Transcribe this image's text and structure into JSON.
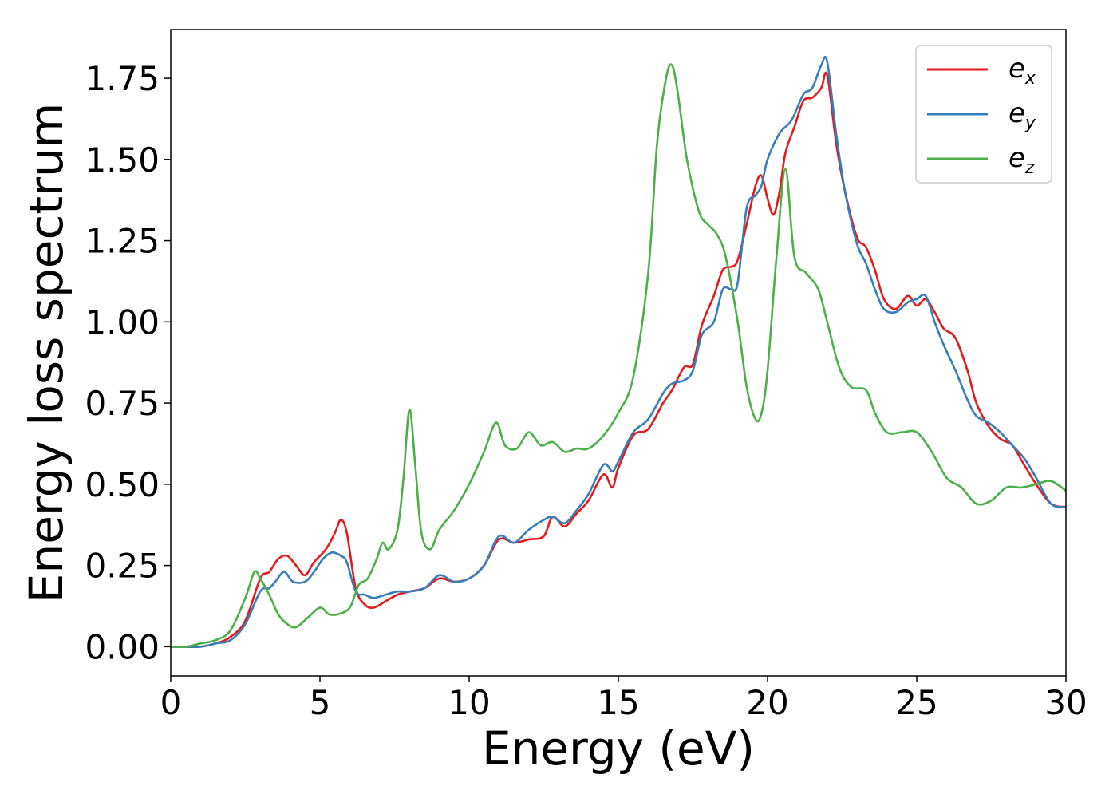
{
  "chart_data": {
    "type": "line",
    "title": "",
    "xlabel": "Energy (eV)",
    "ylabel": "Energy loss spectrum",
    "xlim": [
      0,
      30
    ],
    "ylim": [
      -0.09,
      1.9
    ],
    "xticks": [
      0,
      5,
      10,
      15,
      20,
      25,
      30
    ],
    "yticks": [
      0.0,
      0.25,
      0.5,
      0.75,
      1.0,
      1.25,
      1.5,
      1.75
    ],
    "ytick_labels": [
      "0.00",
      "0.25",
      "0.50",
      "0.75",
      "1.00",
      "1.25",
      "1.50",
      "1.75"
    ],
    "grid": false,
    "legend": "top-right",
    "series": [
      {
        "name": "e_x",
        "base": "e",
        "sub": "x",
        "color": "#e41a1c",
        "x": [
          0,
          0.5,
          1,
          1.5,
          2,
          2.5,
          3,
          3.3,
          3.6,
          3.9,
          4.2,
          4.5,
          4.8,
          5.2,
          5.5,
          5.7,
          5.9,
          6.2,
          6.5,
          6.8,
          7.2,
          7.6,
          8,
          8.5,
          9,
          9.5,
          10,
          10.5,
          11,
          11.5,
          12,
          12.5,
          12.8,
          13.2,
          13.6,
          14,
          14.5,
          14.8,
          15,
          15.5,
          16,
          16.5,
          16.8,
          17.2,
          17.5,
          17.8,
          18.2,
          18.5,
          18.8,
          19,
          19.3,
          19.6,
          19.8,
          20,
          20.2,
          20.4,
          20.6,
          20.9,
          21.2,
          21.5,
          21.8,
          22,
          22.3,
          22.6,
          23,
          23.3,
          23.6,
          23.9,
          24.3,
          24.7,
          25,
          25.3,
          25.6,
          25.9,
          26.3,
          26.7,
          27,
          27.4,
          27.8,
          28.2,
          28.6,
          29,
          29.5,
          30
        ],
        "y": [
          0.0,
          0.0,
          0.0,
          0.01,
          0.03,
          0.08,
          0.21,
          0.23,
          0.27,
          0.28,
          0.25,
          0.22,
          0.26,
          0.3,
          0.35,
          0.39,
          0.35,
          0.18,
          0.13,
          0.12,
          0.14,
          0.16,
          0.17,
          0.18,
          0.21,
          0.2,
          0.21,
          0.25,
          0.33,
          0.32,
          0.33,
          0.34,
          0.4,
          0.37,
          0.41,
          0.45,
          0.53,
          0.49,
          0.55,
          0.65,
          0.67,
          0.75,
          0.79,
          0.86,
          0.87,
          0.99,
          1.08,
          1.16,
          1.17,
          1.19,
          1.3,
          1.42,
          1.45,
          1.38,
          1.33,
          1.4,
          1.52,
          1.6,
          1.68,
          1.69,
          1.72,
          1.76,
          1.55,
          1.4,
          1.26,
          1.23,
          1.16,
          1.07,
          1.04,
          1.08,
          1.05,
          1.07,
          1.03,
          0.98,
          0.95,
          0.85,
          0.75,
          0.68,
          0.64,
          0.62,
          0.56,
          0.5,
          0.44,
          0.43
        ]
      },
      {
        "name": "e_y",
        "base": "e",
        "sub": "y",
        "color": "#377eb8",
        "x": [
          0,
          0.5,
          1,
          1.5,
          2,
          2.5,
          3,
          3.3,
          3.5,
          3.8,
          4.1,
          4.5,
          4.8,
          5.1,
          5.4,
          5.7,
          5.9,
          6.2,
          6.5,
          6.8,
          7.2,
          7.6,
          8,
          8.5,
          9,
          9.5,
          10,
          10.5,
          11,
          11.5,
          12,
          12.5,
          12.8,
          13.2,
          13.6,
          14,
          14.5,
          14.8,
          15,
          15.5,
          16,
          16.5,
          16.8,
          17.2,
          17.5,
          17.8,
          18.2,
          18.5,
          18.8,
          19,
          19.3,
          19.6,
          19.8,
          20,
          20.4,
          20.8,
          21.2,
          21.5,
          21.8,
          22,
          22.3,
          22.6,
          23,
          23.3,
          23.6,
          23.9,
          24.3,
          24.7,
          25,
          25.3,
          25.6,
          25.9,
          26.3,
          26.7,
          27,
          27.4,
          27.8,
          28.2,
          28.6,
          29,
          29.5,
          30
        ],
        "y": [
          0.0,
          0.0,
          0.0,
          0.01,
          0.02,
          0.07,
          0.17,
          0.18,
          0.2,
          0.23,
          0.2,
          0.2,
          0.23,
          0.27,
          0.29,
          0.28,
          0.26,
          0.17,
          0.16,
          0.15,
          0.16,
          0.17,
          0.17,
          0.18,
          0.22,
          0.2,
          0.21,
          0.25,
          0.34,
          0.32,
          0.36,
          0.39,
          0.4,
          0.38,
          0.42,
          0.47,
          0.56,
          0.54,
          0.57,
          0.66,
          0.7,
          0.78,
          0.81,
          0.82,
          0.85,
          0.96,
          1.0,
          1.1,
          1.1,
          1.12,
          1.35,
          1.39,
          1.42,
          1.5,
          1.58,
          1.62,
          1.7,
          1.72,
          1.79,
          1.8,
          1.58,
          1.4,
          1.24,
          1.18,
          1.1,
          1.04,
          1.03,
          1.06,
          1.07,
          1.08,
          1.0,
          0.93,
          0.85,
          0.76,
          0.71,
          0.69,
          0.66,
          0.62,
          0.58,
          0.52,
          0.44,
          0.43
        ]
      },
      {
        "name": "e_z",
        "base": "e",
        "sub": "z",
        "color": "#4daf4a",
        "x": [
          0,
          0.5,
          1,
          1.5,
          2,
          2.5,
          2.8,
          3,
          3.3,
          3.6,
          3.9,
          4.2,
          4.6,
          5,
          5.3,
          5.6,
          6,
          6.3,
          6.6,
          6.9,
          7.1,
          7.3,
          7.6,
          7.8,
          8,
          8.2,
          8.4,
          8.7,
          9,
          9.5,
          10,
          10.5,
          10.9,
          11.2,
          11.6,
          12,
          12.4,
          12.8,
          13.2,
          13.6,
          14,
          14.5,
          15,
          15.5,
          16,
          16.3,
          16.6,
          16.8,
          17,
          17.3,
          17.7,
          18,
          18.3,
          18.6,
          19,
          19.3,
          19.6,
          19.8,
          20,
          20.3,
          20.6,
          20.9,
          21.3,
          21.7,
          22,
          22.4,
          22.8,
          23.3,
          23.6,
          24,
          24.5,
          25,
          25.5,
          26,
          26.5,
          27,
          27.5,
          28,
          28.5,
          29,
          29.5,
          30
        ],
        "y": [
          0.0,
          0.0,
          0.01,
          0.02,
          0.05,
          0.15,
          0.23,
          0.21,
          0.16,
          0.1,
          0.07,
          0.06,
          0.09,
          0.12,
          0.1,
          0.1,
          0.12,
          0.19,
          0.21,
          0.27,
          0.32,
          0.3,
          0.36,
          0.52,
          0.73,
          0.55,
          0.35,
          0.3,
          0.36,
          0.42,
          0.5,
          0.6,
          0.69,
          0.62,
          0.61,
          0.66,
          0.62,
          0.63,
          0.6,
          0.61,
          0.61,
          0.65,
          0.72,
          0.83,
          1.15,
          1.55,
          1.75,
          1.79,
          1.7,
          1.5,
          1.34,
          1.3,
          1.27,
          1.2,
          1.0,
          0.8,
          0.7,
          0.72,
          0.85,
          1.2,
          1.47,
          1.2,
          1.15,
          1.1,
          1.0,
          0.86,
          0.8,
          0.79,
          0.72,
          0.66,
          0.66,
          0.66,
          0.6,
          0.52,
          0.49,
          0.44,
          0.45,
          0.49,
          0.49,
          0.5,
          0.51,
          0.48
        ]
      }
    ]
  }
}
